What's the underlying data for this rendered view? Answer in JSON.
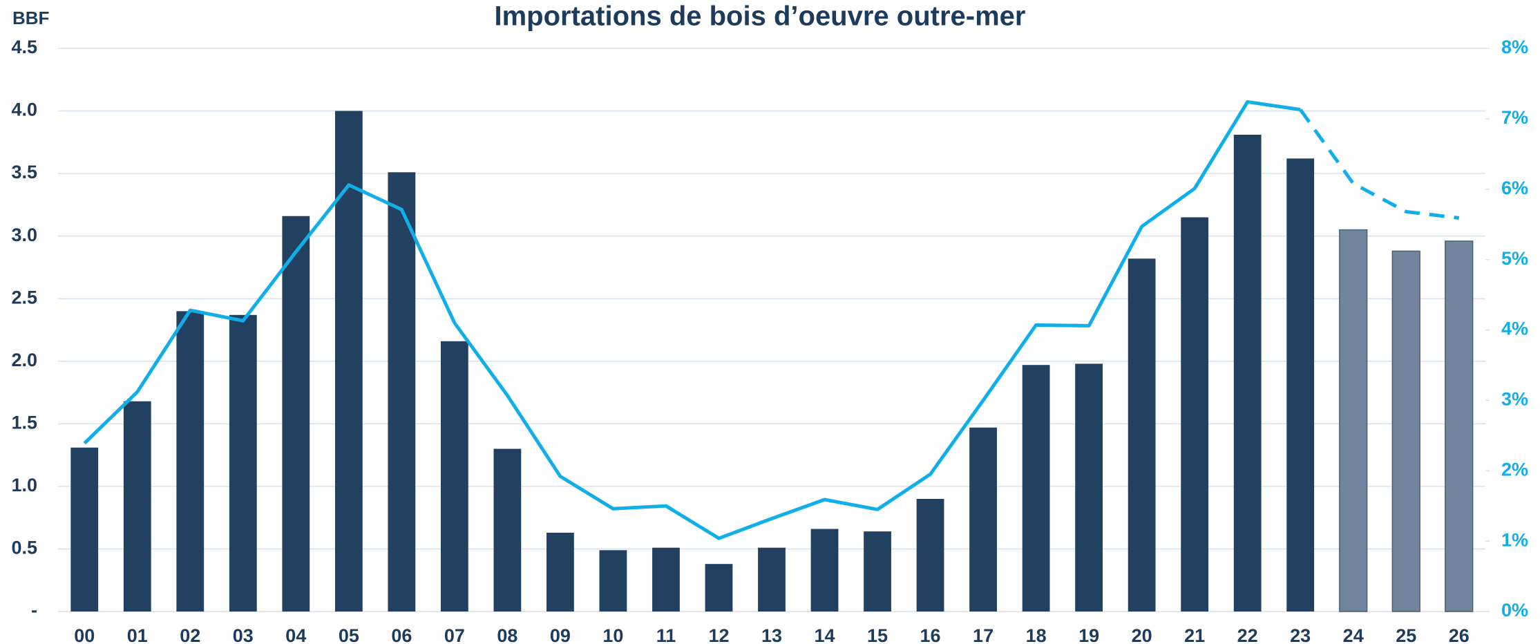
{
  "chart_data": {
    "type": "bar-line",
    "title": "Importations de bois d’oeuvre outre-mer",
    "y_label": "BBF",
    "categories": [
      "00",
      "01",
      "02",
      "03",
      "04",
      "05",
      "06",
      "07",
      "08",
      "09",
      "10",
      "11",
      "12",
      "13",
      "14",
      "15",
      "16",
      "17",
      "18",
      "19",
      "20",
      "21",
      "22",
      "23",
      "24",
      "25",
      "26"
    ],
    "values": [
      1.31,
      1.68,
      2.4,
      2.37,
      3.16,
      4.0,
      3.51,
      2.16,
      1.3,
      0.63,
      0.49,
      0.51,
      0.38,
      0.51,
      0.66,
      0.64,
      0.9,
      1.47,
      1.97,
      1.98,
      2.82,
      3.15,
      3.81,
      3.62,
      3.05,
      2.88,
      2.96
    ],
    "bar_colors": [
      "#22405f",
      "#22405f",
      "#22405f",
      "#22405f",
      "#22405f",
      "#22405f",
      "#22405f",
      "#22405f",
      "#22405f",
      "#22405f",
      "#22405f",
      "#22405f",
      "#22405f",
      "#22405f",
      "#22405f",
      "#22405f",
      "#22405f",
      "#22405f",
      "#22405f",
      "#22405f",
      "#22405f",
      "#22405f",
      "#22405f",
      "#22405f",
      "#71849c",
      "#71849c",
      "#71849c"
    ],
    "line": {
      "axis": "y2",
      "color": "#12aee7",
      "dashed_from": 23,
      "values": [
        2.39,
        3.12,
        4.28,
        4.13,
        5.11,
        6.06,
        5.71,
        4.1,
        3.07,
        1.92,
        1.46,
        1.5,
        1.04,
        1.32,
        1.59,
        1.45,
        1.95,
        3.0,
        4.07,
        4.06,
        5.47,
        6.01,
        7.24,
        7.13,
        6.08,
        5.68,
        5.59
      ]
    },
    "ylim": [
      0,
      4.5
    ],
    "yticks": [
      {
        "value": 0,
        "label": "-"
      },
      0.5,
      {
        "value": 1,
        "label": "1.0"
      },
      1.5,
      {
        "value": 2,
        "label": "2.0"
      },
      2.5,
      {
        "value": 3,
        "label": "3.0"
      },
      3.5,
      {
        "value": 4,
        "label": "4.0"
      },
      4.5
    ],
    "y2lim": [
      0,
      8
    ],
    "y2ticks": [
      {
        "value": 0,
        "label": "0%"
      },
      {
        "value": 1,
        "label": "1%"
      },
      {
        "value": 2,
        "label": "2%"
      },
      {
        "value": 3,
        "label": "3%"
      },
      {
        "value": 4,
        "label": "4%"
      },
      {
        "value": 5,
        "label": "5%"
      },
      {
        "value": 6,
        "label": "6%"
      },
      {
        "value": 7,
        "label": "7%"
      },
      {
        "value": 8,
        "label": "8%"
      }
    ],
    "grid": true
  }
}
